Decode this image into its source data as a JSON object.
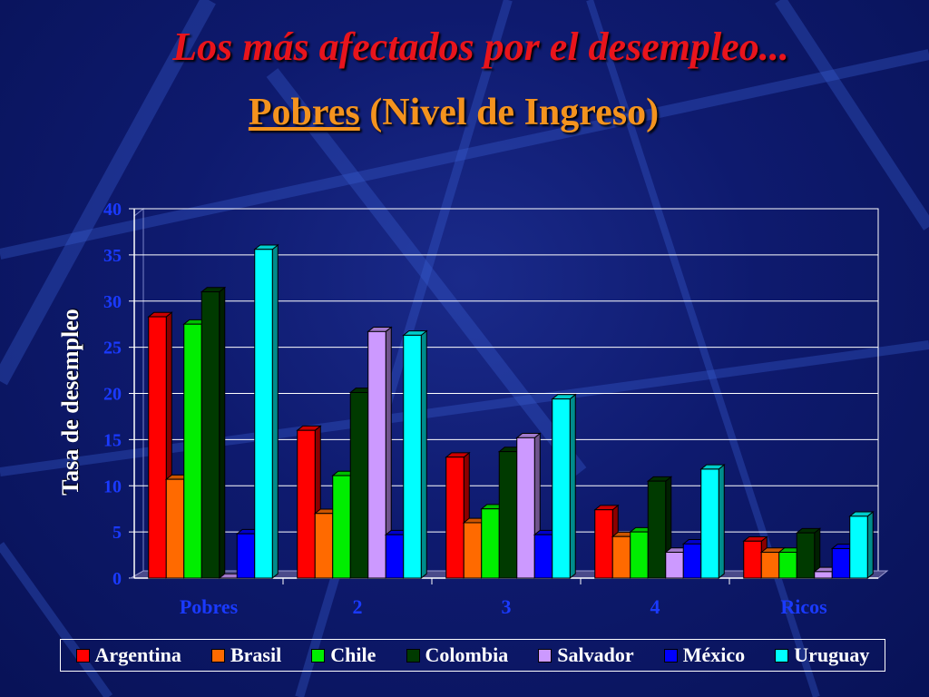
{
  "header": {
    "title": "Los más afectados por el desempleo...",
    "subtitle_main": "Pobres",
    "subtitle_rest": " (Nivel de Ingreso)"
  },
  "chart_data": {
    "type": "bar",
    "title": "",
    "xlabel": "",
    "ylabel": "Tasa de desempleo",
    "ylim": [
      0,
      40
    ],
    "yticks": [
      0,
      5,
      10,
      15,
      20,
      25,
      30,
      35,
      40
    ],
    "grid": true,
    "legend_position": "bottom",
    "categories": [
      "Pobres",
      "2",
      "3",
      "4",
      "Ricos"
    ],
    "series": [
      {
        "name": "Argentina",
        "color": "#ff0000",
        "values": [
          28.3,
          16.0,
          13.1,
          7.4,
          4.0
        ]
      },
      {
        "name": "Brasil",
        "color": "#ff6a00",
        "values": [
          10.7,
          7.0,
          6.0,
          4.5,
          2.8
        ]
      },
      {
        "name": "Chile",
        "color": "#00ee00",
        "values": [
          27.5,
          11.1,
          7.5,
          5.0,
          2.8
        ]
      },
      {
        "name": "Colombia",
        "color": "#003a00",
        "values": [
          31.0,
          20.1,
          13.7,
          10.5,
          4.9
        ]
      },
      {
        "name": "Salvador",
        "color": "#cc99ff",
        "values": [
          0,
          26.7,
          15.2,
          2.8,
          0.7
        ]
      },
      {
        "name": "México",
        "color": "#0000ff",
        "values": [
          4.8,
          4.7,
          4.7,
          3.7,
          3.2
        ]
      },
      {
        "name": "Uruguay",
        "color": "#00ffff",
        "values": [
          35.6,
          26.3,
          19.4,
          11.8,
          6.7
        ]
      }
    ]
  }
}
